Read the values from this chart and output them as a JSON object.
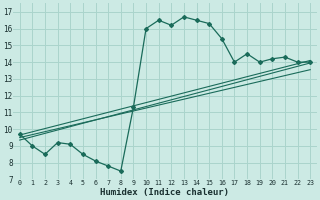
{
  "xlabel": "Humidex (Indice chaleur)",
  "bg_color": "#cceae4",
  "grid_color": "#aad4cc",
  "line_color": "#1a6b5a",
  "xlim": [
    -0.5,
    23.5
  ],
  "ylim": [
    7,
    17.5
  ],
  "xticks": [
    0,
    1,
    2,
    3,
    4,
    5,
    6,
    7,
    8,
    9,
    10,
    11,
    12,
    13,
    14,
    15,
    16,
    17,
    18,
    19,
    20,
    21,
    22,
    23
  ],
  "yticks": [
    7,
    8,
    9,
    10,
    11,
    12,
    13,
    14,
    15,
    16,
    17
  ],
  "curve1_x": [
    0,
    1,
    2,
    3,
    4,
    5,
    6,
    7,
    8,
    9,
    10,
    11,
    12,
    13,
    14,
    15,
    16,
    17,
    18,
    19,
    20,
    21,
    22,
    23
  ],
  "curve1_y": [
    9.7,
    9.0,
    8.5,
    9.2,
    9.1,
    8.5,
    8.1,
    7.8,
    7.5,
    11.3,
    16.0,
    16.5,
    16.2,
    16.7,
    16.5,
    16.3,
    15.4,
    14.0,
    14.5,
    14.0,
    14.2,
    14.3,
    14.0,
    14.0
  ],
  "line2_x": [
    0,
    23
  ],
  "line2_y": [
    9.65,
    14.1
  ],
  "line3_x": [
    0,
    23
  ],
  "line3_y": [
    9.5,
    13.55
  ],
  "line4_x": [
    0,
    23
  ],
  "line4_y": [
    9.35,
    13.95
  ]
}
